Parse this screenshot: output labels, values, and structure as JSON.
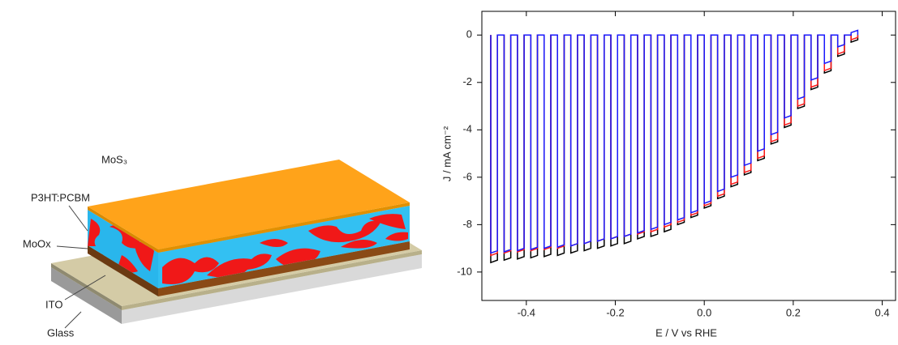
{
  "diagram": {
    "labels": [
      "MoS₃",
      "P3HT:PCBM",
      "MoOx",
      "ITO",
      "Glass"
    ]
  },
  "chart_data": {
    "type": "line",
    "xlabel": "E / V vs RHE",
    "ylabel": "J / mA cm⁻²",
    "xlim": [
      -0.5,
      0.43
    ],
    "ylim": [
      -11.2,
      1
    ],
    "xticks": [
      -0.4,
      -0.2,
      {
        "value": 0,
        "label": "0.0"
      },
      0.2,
      0.4
    ],
    "yticks": [
      0,
      -2,
      -4,
      -6,
      -8,
      -10
    ],
    "x": [
      -0.48,
      -0.48,
      -0.465,
      -0.465,
      -0.45,
      -0.45,
      -0.435,
      -0.435,
      -0.42,
      -0.42,
      -0.405,
      -0.405,
      -0.39,
      -0.39,
      -0.375,
      -0.375,
      -0.36,
      -0.36,
      -0.345,
      -0.345,
      -0.33,
      -0.33,
      -0.315,
      -0.315,
      -0.3,
      -0.3,
      -0.285,
      -0.285,
      -0.27,
      -0.27,
      -0.255,
      -0.255,
      -0.24,
      -0.24,
      -0.225,
      -0.225,
      -0.21,
      -0.21,
      -0.195,
      -0.195,
      -0.18,
      -0.18,
      -0.165,
      -0.165,
      -0.15,
      -0.15,
      -0.135,
      -0.135,
      -0.12,
      -0.12,
      -0.105,
      -0.105,
      -0.09,
      -0.09,
      -0.075,
      -0.075,
      -0.06,
      -0.06,
      -0.045,
      -0.045,
      -0.03,
      -0.03,
      -0.015,
      -0.015,
      0,
      0,
      0.015,
      0.015,
      0.03,
      0.03,
      0.045,
      0.045,
      0.06,
      0.06,
      0.075,
      0.075,
      0.09,
      0.09,
      0.105,
      0.105,
      0.12,
      0.12,
      0.135,
      0.135,
      0.15,
      0.15,
      0.165,
      0.165,
      0.18,
      0.18,
      0.195,
      0.195,
      0.21,
      0.21,
      0.225,
      0.225,
      0.24,
      0.24,
      0.255,
      0.255,
      0.27,
      0.27,
      0.285,
      0.285,
      0.3,
      0.3,
      0.315,
      0.315,
      0.33,
      0.33,
      0.345,
      0.345
    ],
    "series": [
      {
        "color": "#000000",
        "values": [
          0,
          -9.6,
          -9.5,
          0,
          0,
          -9.5,
          -9.4,
          0,
          0,
          -9.45,
          -9.35,
          0,
          0,
          -9.4,
          -9.3,
          0,
          0,
          -9.35,
          -9.25,
          0,
          0,
          -9.3,
          -9.2,
          0,
          0,
          -9.2,
          -9.1,
          0,
          0,
          -9.1,
          -9,
          0,
          0,
          -9,
          -8.9,
          0,
          0,
          -8.9,
          -8.8,
          0,
          0,
          -8.8,
          -8.7,
          0,
          0,
          -8.6,
          -8.5,
          0,
          0,
          -8.5,
          -8.4,
          0,
          0,
          -8.3,
          -8.2,
          0,
          0,
          -8,
          -7.9,
          0,
          0,
          -7.7,
          -7.6,
          0,
          0,
          -7.3,
          -7.2,
          0,
          0,
          -6.9,
          -6.8,
          0,
          0,
          -6.4,
          -6.3,
          0,
          0,
          -5.9,
          -5.8,
          0,
          0,
          -5.3,
          -5.2,
          0,
          0,
          -4.6,
          -4.5,
          0,
          0,
          -3.9,
          -3.8,
          0,
          0,
          -3.1,
          -3,
          0,
          0,
          -2.3,
          -2.2,
          0,
          0,
          -1.6,
          -1.5,
          0,
          0,
          -0.9,
          -0.8,
          0,
          0,
          -0.3,
          -0.2,
          0
        ]
      },
      {
        "color": "#ff1a1a",
        "values": [
          0,
          -9.3,
          -9.2,
          0,
          0,
          -9.2,
          -9.1,
          0,
          0,
          -9.15,
          -9.05,
          0,
          0,
          -9.1,
          -9,
          0,
          0,
          -9.05,
          -8.95,
          0,
          0,
          -9,
          -8.9,
          0,
          0,
          -8.9,
          -8.8,
          0,
          0,
          -8.8,
          -8.7,
          0,
          0,
          -8.7,
          -8.6,
          0,
          0,
          -8.6,
          -8.5,
          0,
          0,
          -8.5,
          -8.4,
          0,
          0,
          -8.4,
          -8.3,
          0,
          0,
          -8.3,
          -8.2,
          0,
          0,
          -8.1,
          -8,
          0,
          0,
          -7.9,
          -7.8,
          0,
          0,
          -7.6,
          -7.5,
          0,
          0,
          -7.2,
          -7.1,
          0,
          0,
          -6.8,
          -6.7,
          0,
          0,
          -6.3,
          -6.2,
          0,
          0,
          -5.8,
          -5.7,
          0,
          0,
          -5.2,
          -5.1,
          0,
          0,
          -4.5,
          -4.4,
          0,
          0,
          -3.8,
          -3.7,
          0,
          0,
          -3,
          -2.9,
          0,
          0,
          -2.2,
          -2.1,
          0,
          0,
          -1.5,
          -1.4,
          0,
          0,
          -0.8,
          -0.7,
          0,
          0,
          -0.2,
          -0.1,
          0
        ]
      },
      {
        "color": "#1a1aff",
        "values": [
          0,
          -9.2,
          -9.1,
          0,
          0,
          -9.15,
          -9.05,
          0,
          0,
          -9.1,
          -9,
          0,
          0,
          -9.05,
          -8.95,
          0,
          0,
          -9,
          -8.9,
          0,
          0,
          -8.95,
          -8.85,
          0,
          0,
          -8.9,
          -8.8,
          0,
          0,
          -8.8,
          -8.7,
          0,
          0,
          -8.7,
          -8.6,
          0,
          0,
          -8.6,
          -8.5,
          0,
          0,
          -8.5,
          -8.4,
          0,
          0,
          -8.35,
          -8.25,
          0,
          0,
          -8.2,
          -8.1,
          0,
          0,
          -8,
          -7.9,
          0,
          0,
          -7.8,
          -7.7,
          0,
          0,
          -7.5,
          -7.4,
          0,
          0,
          -7.1,
          -7,
          0,
          0,
          -6.6,
          -6.5,
          0,
          0,
          -6,
          -5.9,
          0,
          0,
          -5.5,
          -5.4,
          0,
          0,
          -4.9,
          -4.8,
          0,
          0,
          -4.2,
          -4.1,
          0,
          0,
          -3.5,
          -3.4,
          0,
          0,
          -2.7,
          -2.6,
          0,
          0,
          -1.9,
          -1.8,
          0,
          0,
          -1.2,
          -1.1,
          0,
          0,
          -0.5,
          -0.4,
          0,
          0,
          0.1,
          0.2,
          0
        ]
      }
    ]
  }
}
